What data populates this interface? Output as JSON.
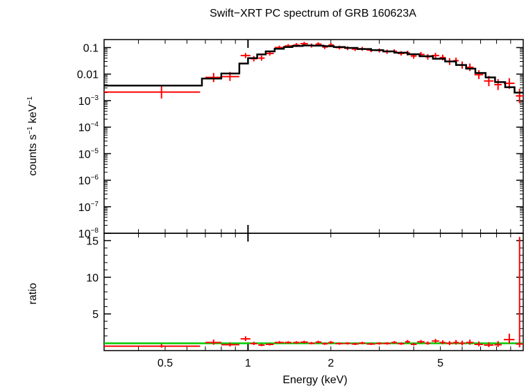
{
  "chart_data": [
    {
      "type": "line",
      "panel": "spectrum",
      "title": "Swift−XRT PC spectrum of GRB 160623A",
      "ylabel_parts": [
        "counts s",
        "−1",
        " keV",
        "−1"
      ],
      "ylim": [
        1e-08,
        0.2
      ],
      "yscale": "log",
      "xlim": [
        0.3,
        10
      ],
      "xscale": "log",
      "y_ticks": [
        {
          "value": 0.1,
          "label": "0.1",
          "sup": ""
        },
        {
          "value": 0.01,
          "label": "0.01",
          "sup": ""
        },
        {
          "value": 0.001,
          "label": "10",
          "sup": "−3"
        },
        {
          "value": 0.0001,
          "label": "10",
          "sup": "−4"
        },
        {
          "value": 1e-05,
          "label": "10",
          "sup": "−5"
        },
        {
          "value": 1e-06,
          "label": "10",
          "sup": "−6"
        },
        {
          "value": 1e-07,
          "label": "10",
          "sup": "−7"
        },
        {
          "value": 1e-08,
          "label": "10",
          "sup": "−8"
        }
      ],
      "series": [
        {
          "role": "data",
          "color": "#ff0000",
          "points": [
            {
              "x": 0.485,
              "xlo": 0.3,
              "xhi": 0.67,
              "y": 0.0021,
              "ylo": 0.0012,
              "yhi": 0.0037
            },
            {
              "x": 0.75,
              "xlo": 0.7,
              "xhi": 0.8,
              "y": 0.0075,
              "ylo": 0.005,
              "yhi": 0.011
            },
            {
              "x": 0.86,
              "xlo": 0.8,
              "xhi": 0.93,
              "y": 0.008,
              "ylo": 0.0055,
              "yhi": 0.012
            },
            {
              "x": 0.98,
              "xlo": 0.94,
              "xhi": 1.02,
              "y": 0.05,
              "ylo": 0.04,
              "yhi": 0.062
            },
            {
              "x": 1.05,
              "xlo": 1.02,
              "xhi": 1.08,
              "y": 0.038,
              "ylo": 0.03,
              "yhi": 0.048
            },
            {
              "x": 1.12,
              "xlo": 1.09,
              "xhi": 1.15,
              "y": 0.04,
              "ylo": 0.032,
              "yhi": 0.05
            },
            {
              "x": 1.2,
              "xlo": 1.16,
              "xhi": 1.24,
              "y": 0.06,
              "ylo": 0.05,
              "yhi": 0.072
            },
            {
              "x": 1.3,
              "xlo": 1.25,
              "xhi": 1.35,
              "y": 0.1,
              "ylo": 0.085,
              "yhi": 0.118
            },
            {
              "x": 1.4,
              "xlo": 1.36,
              "xhi": 1.44,
              "y": 0.115,
              "ylo": 0.098,
              "yhi": 0.135
            },
            {
              "x": 1.5,
              "xlo": 1.46,
              "xhi": 1.54,
              "y": 0.125,
              "ylo": 0.105,
              "yhi": 0.148
            },
            {
              "x": 1.6,
              "xlo": 1.55,
              "xhi": 1.65,
              "y": 0.14,
              "ylo": 0.12,
              "yhi": 0.165
            },
            {
              "x": 1.7,
              "xlo": 1.66,
              "xhi": 1.75,
              "y": 0.12,
              "ylo": 0.1,
              "yhi": 0.142
            },
            {
              "x": 1.8,
              "xlo": 1.76,
              "xhi": 1.85,
              "y": 0.135,
              "ylo": 0.115,
              "yhi": 0.158
            },
            {
              "x": 1.9,
              "xlo": 1.86,
              "xhi": 1.95,
              "y": 0.105,
              "ylo": 0.088,
              "yhi": 0.125
            },
            {
              "x": 2.0,
              "xlo": 1.96,
              "xhi": 2.05,
              "y": 0.125,
              "ylo": 0.105,
              "yhi": 0.148
            },
            {
              "x": 2.15,
              "xlo": 2.08,
              "xhi": 2.22,
              "y": 0.1,
              "ylo": 0.085,
              "yhi": 0.118
            },
            {
              "x": 2.3,
              "xlo": 2.24,
              "xhi": 2.36,
              "y": 0.095,
              "ylo": 0.08,
              "yhi": 0.112
            },
            {
              "x": 2.45,
              "xlo": 2.38,
              "xhi": 2.52,
              "y": 0.088,
              "ylo": 0.074,
              "yhi": 0.104
            },
            {
              "x": 2.6,
              "xlo": 2.53,
              "xhi": 2.67,
              "y": 0.09,
              "ylo": 0.076,
              "yhi": 0.106
            },
            {
              "x": 2.8,
              "xlo": 2.7,
              "xhi": 2.9,
              "y": 0.08,
              "ylo": 0.067,
              "yhi": 0.095
            },
            {
              "x": 3.0,
              "xlo": 2.92,
              "xhi": 3.08,
              "y": 0.078,
              "ylo": 0.065,
              "yhi": 0.093
            },
            {
              "x": 3.2,
              "xlo": 3.1,
              "xhi": 3.3,
              "y": 0.07,
              "ylo": 0.058,
              "yhi": 0.084
            },
            {
              "x": 3.4,
              "xlo": 3.32,
              "xhi": 3.48,
              "y": 0.072,
              "ylo": 0.06,
              "yhi": 0.086
            },
            {
              "x": 3.6,
              "xlo": 3.5,
              "xhi": 3.7,
              "y": 0.06,
              "ylo": 0.05,
              "yhi": 0.073
            },
            {
              "x": 3.8,
              "xlo": 3.72,
              "xhi": 3.88,
              "y": 0.062,
              "ylo": 0.05,
              "yhi": 0.076
            },
            {
              "x": 4.0,
              "xlo": 3.9,
              "xhi": 4.1,
              "y": 0.048,
              "ylo": 0.038,
              "yhi": 0.06
            },
            {
              "x": 4.25,
              "xlo": 4.12,
              "xhi": 4.38,
              "y": 0.055,
              "ylo": 0.044,
              "yhi": 0.068
            },
            {
              "x": 4.5,
              "xlo": 4.4,
              "xhi": 4.6,
              "y": 0.045,
              "ylo": 0.035,
              "yhi": 0.057
            },
            {
              "x": 4.8,
              "xlo": 4.65,
              "xhi": 4.95,
              "y": 0.05,
              "ylo": 0.04,
              "yhi": 0.063
            },
            {
              "x": 5.1,
              "xlo": 4.97,
              "xhi": 5.23,
              "y": 0.042,
              "ylo": 0.033,
              "yhi": 0.054
            },
            {
              "x": 5.4,
              "xlo": 5.25,
              "xhi": 5.55,
              "y": 0.03,
              "ylo": 0.022,
              "yhi": 0.04
            },
            {
              "x": 5.7,
              "xlo": 5.57,
              "xhi": 5.83,
              "y": 0.032,
              "ylo": 0.024,
              "yhi": 0.042
            },
            {
              "x": 6.0,
              "xlo": 5.85,
              "xhi": 6.15,
              "y": 0.022,
              "ylo": 0.016,
              "yhi": 0.03
            },
            {
              "x": 6.4,
              "xlo": 6.2,
              "xhi": 6.6,
              "y": 0.018,
              "ylo": 0.013,
              "yhi": 0.025
            },
            {
              "x": 6.9,
              "xlo": 6.65,
              "xhi": 7.15,
              "y": 0.0095,
              "ylo": 0.0065,
              "yhi": 0.014
            },
            {
              "x": 7.5,
              "xlo": 7.2,
              "xhi": 7.8,
              "y": 0.0055,
              "ylo": 0.0035,
              "yhi": 0.0085
            },
            {
              "x": 8.1,
              "xlo": 7.85,
              "xhi": 8.35,
              "y": 0.004,
              "ylo": 0.0025,
              "yhi": 0.0065
            },
            {
              "x": 8.9,
              "xlo": 8.5,
              "xhi": 9.3,
              "y": 0.0045,
              "ylo": 0.0028,
              "yhi": 0.007
            },
            {
              "x": 9.7,
              "xlo": 9.4,
              "xhi": 10.0,
              "y": 0.0015,
              "ylo": 0.0008,
              "yhi": 0.0028
            }
          ]
        },
        {
          "role": "model",
          "color": "#000000",
          "steps": [
            {
              "x0": 0.3,
              "x1": 0.68,
              "y": 0.0037
            },
            {
              "x0": 0.68,
              "x1": 0.8,
              "y": 0.0068
            },
            {
              "x0": 0.8,
              "x1": 0.93,
              "y": 0.0105
            },
            {
              "x0": 0.93,
              "x1": 1.0,
              "y": 0.025
            },
            {
              "x0": 1.0,
              "x1": 1.08,
              "y": 0.04
            },
            {
              "x0": 1.08,
              "x1": 1.16,
              "y": 0.055
            },
            {
              "x0": 1.16,
              "x1": 1.25,
              "y": 0.072
            },
            {
              "x0": 1.25,
              "x1": 1.35,
              "y": 0.09
            },
            {
              "x0": 1.35,
              "x1": 1.45,
              "y": 0.105
            },
            {
              "x0": 1.45,
              "x1": 1.58,
              "y": 0.115
            },
            {
              "x0": 1.58,
              "x1": 1.72,
              "y": 0.12
            },
            {
              "x0": 1.72,
              "x1": 1.88,
              "y": 0.118
            },
            {
              "x0": 1.88,
              "x1": 2.05,
              "y": 0.113
            },
            {
              "x0": 2.05,
              "x1": 2.25,
              "y": 0.105
            },
            {
              "x0": 2.25,
              "x1": 2.5,
              "y": 0.097
            },
            {
              "x0": 2.5,
              "x1": 2.8,
              "y": 0.088
            },
            {
              "x0": 2.8,
              "x1": 3.1,
              "y": 0.08
            },
            {
              "x0": 3.1,
              "x1": 3.4,
              "y": 0.072
            },
            {
              "x0": 3.4,
              "x1": 3.8,
              "y": 0.064
            },
            {
              "x0": 3.8,
              "x1": 4.2,
              "y": 0.056
            },
            {
              "x0": 4.2,
              "x1": 4.7,
              "y": 0.047
            },
            {
              "x0": 4.7,
              "x1": 5.2,
              "y": 0.038
            },
            {
              "x0": 5.2,
              "x1": 5.7,
              "y": 0.03
            },
            {
              "x0": 5.7,
              "x1": 6.2,
              "y": 0.022
            },
            {
              "x0": 6.2,
              "x1": 6.7,
              "y": 0.016
            },
            {
              "x0": 6.7,
              "x1": 7.3,
              "y": 0.011
            },
            {
              "x0": 7.3,
              "x1": 7.9,
              "y": 0.0075
            },
            {
              "x0": 7.9,
              "x1": 8.6,
              "y": 0.005
            },
            {
              "x0": 8.6,
              "x1": 9.3,
              "y": 0.0032
            },
            {
              "x0": 9.3,
              "x1": 10.0,
              "y": 0.002
            }
          ]
        }
      ]
    },
    {
      "type": "scatter",
      "panel": "ratio",
      "ylabel": "ratio",
      "xlabel": "Energy (keV)",
      "xlim": [
        0.3,
        10
      ],
      "xscale": "log",
      "ylim": [
        0,
        16
      ],
      "y_ticks": [
        5,
        10,
        15
      ],
      "x_ticks": [
        {
          "value": 0.5,
          "label": "0.5"
        },
        {
          "value": 1,
          "label": "1"
        },
        {
          "value": 2,
          "label": "2"
        },
        {
          "value": 5,
          "label": "5"
        }
      ],
      "reference_line": {
        "y": 1,
        "color": "#00cc00"
      },
      "series": [
        {
          "role": "ratio",
          "color": "#ff0000",
          "points": [
            {
              "x": 0.485,
              "xlo": 0.3,
              "xhi": 0.67,
              "y": 0.6,
              "ylo": 0.4,
              "yhi": 0.9
            },
            {
              "x": 0.75,
              "xlo": 0.7,
              "xhi": 0.8,
              "y": 1.1,
              "ylo": 0.8,
              "yhi": 1.5
            },
            {
              "x": 0.86,
              "xlo": 0.8,
              "xhi": 0.93,
              "y": 0.8,
              "ylo": 0.55,
              "yhi": 1.1
            },
            {
              "x": 0.98,
              "xlo": 0.94,
              "xhi": 1.02,
              "y": 1.6,
              "ylo": 1.3,
              "yhi": 1.95
            },
            {
              "x": 1.05,
              "xlo": 1.02,
              "xhi": 1.08,
              "y": 0.95,
              "ylo": 0.75,
              "yhi": 1.2
            },
            {
              "x": 1.12,
              "xlo": 1.09,
              "xhi": 1.15,
              "y": 0.75,
              "ylo": 0.6,
              "yhi": 0.95
            },
            {
              "x": 1.2,
              "xlo": 1.16,
              "xhi": 1.24,
              "y": 0.85,
              "ylo": 0.7,
              "yhi": 1.0
            },
            {
              "x": 1.3,
              "xlo": 1.25,
              "xhi": 1.35,
              "y": 1.1,
              "ylo": 0.95,
              "yhi": 1.3
            },
            {
              "x": 1.4,
              "xlo": 1.36,
              "xhi": 1.44,
              "y": 1.1,
              "ylo": 0.95,
              "yhi": 1.28
            },
            {
              "x": 1.5,
              "xlo": 1.46,
              "xhi": 1.54,
              "y": 1.1,
              "ylo": 0.92,
              "yhi": 1.28
            },
            {
              "x": 1.6,
              "xlo": 1.55,
              "xhi": 1.65,
              "y": 1.15,
              "ylo": 0.98,
              "yhi": 1.35
            },
            {
              "x": 1.7,
              "xlo": 1.66,
              "xhi": 1.75,
              "y": 1.0,
              "ylo": 0.85,
              "yhi": 1.18
            },
            {
              "x": 1.8,
              "xlo": 1.76,
              "xhi": 1.85,
              "y": 1.15,
              "ylo": 0.98,
              "yhi": 1.35
            },
            {
              "x": 1.9,
              "xlo": 1.86,
              "xhi": 1.95,
              "y": 0.93,
              "ylo": 0.78,
              "yhi": 1.1
            },
            {
              "x": 2.0,
              "xlo": 1.96,
              "xhi": 2.05,
              "y": 1.1,
              "ylo": 0.93,
              "yhi": 1.3
            },
            {
              "x": 2.15,
              "xlo": 2.08,
              "xhi": 2.22,
              "y": 0.95,
              "ylo": 0.8,
              "yhi": 1.12
            },
            {
              "x": 2.3,
              "xlo": 2.24,
              "xhi": 2.36,
              "y": 0.98,
              "ylo": 0.82,
              "yhi": 1.15
            },
            {
              "x": 2.45,
              "xlo": 2.38,
              "xhi": 2.52,
              "y": 0.9,
              "ylo": 0.76,
              "yhi": 1.07
            },
            {
              "x": 2.6,
              "xlo": 2.53,
              "xhi": 2.67,
              "y": 1.02,
              "ylo": 0.86,
              "yhi": 1.2
            },
            {
              "x": 2.8,
              "xlo": 2.7,
              "xhi": 2.9,
              "y": 0.9,
              "ylo": 0.76,
              "yhi": 1.06
            },
            {
              "x": 3.0,
              "xlo": 2.92,
              "xhi": 3.08,
              "y": 0.97,
              "ylo": 0.81,
              "yhi": 1.15
            },
            {
              "x": 3.2,
              "xlo": 3.1,
              "xhi": 3.3,
              "y": 0.97,
              "ylo": 0.81,
              "yhi": 1.15
            },
            {
              "x": 3.4,
              "xlo": 3.32,
              "xhi": 3.48,
              "y": 1.1,
              "ylo": 0.92,
              "yhi": 1.3
            },
            {
              "x": 3.6,
              "xlo": 3.5,
              "xhi": 3.7,
              "y": 0.94,
              "ylo": 0.78,
              "yhi": 1.12
            },
            {
              "x": 3.8,
              "xlo": 3.72,
              "xhi": 3.88,
              "y": 1.2,
              "ylo": 1.0,
              "yhi": 1.45
            },
            {
              "x": 4.0,
              "xlo": 3.9,
              "xhi": 4.1,
              "y": 0.86,
              "ylo": 0.7,
              "yhi": 1.05
            },
            {
              "x": 4.25,
              "xlo": 4.12,
              "xhi": 4.38,
              "y": 1.2,
              "ylo": 0.98,
              "yhi": 1.45
            },
            {
              "x": 4.5,
              "xlo": 4.4,
              "xhi": 4.6,
              "y": 1.0,
              "ylo": 0.8,
              "yhi": 1.25
            },
            {
              "x": 4.8,
              "xlo": 4.65,
              "xhi": 4.95,
              "y": 1.3,
              "ylo": 1.05,
              "yhi": 1.6
            },
            {
              "x": 5.1,
              "xlo": 4.97,
              "xhi": 5.23,
              "y": 1.1,
              "ylo": 0.87,
              "yhi": 1.4
            },
            {
              "x": 5.4,
              "xlo": 5.25,
              "xhi": 5.55,
              "y": 1.0,
              "ylo": 0.75,
              "yhi": 1.3
            },
            {
              "x": 5.7,
              "xlo": 5.57,
              "xhi": 5.83,
              "y": 1.1,
              "ylo": 0.82,
              "yhi": 1.45
            },
            {
              "x": 6.0,
              "xlo": 5.85,
              "xhi": 6.15,
              "y": 1.0,
              "ylo": 0.72,
              "yhi": 1.35
            },
            {
              "x": 6.4,
              "xlo": 6.2,
              "xhi": 6.6,
              "y": 1.1,
              "ylo": 0.8,
              "yhi": 1.5
            },
            {
              "x": 6.9,
              "xlo": 6.65,
              "xhi": 7.15,
              "y": 0.85,
              "ylo": 0.58,
              "yhi": 1.25
            },
            {
              "x": 7.5,
              "xlo": 7.2,
              "xhi": 7.8,
              "y": 0.75,
              "ylo": 0.48,
              "yhi": 1.15
            },
            {
              "x": 8.1,
              "xlo": 7.85,
              "xhi": 8.35,
              "y": 0.8,
              "ylo": 0.5,
              "yhi": 1.3
            },
            {
              "x": 8.9,
              "xlo": 8.5,
              "xhi": 9.3,
              "y": 1.5,
              "ylo": 0.95,
              "yhi": 2.3
            },
            {
              "x": 9.7,
              "xlo": 9.4,
              "xhi": 10.0,
              "y": 0.9,
              "ylo": 0.45,
              "yhi": 15.5
            }
          ]
        }
      ]
    }
  ]
}
